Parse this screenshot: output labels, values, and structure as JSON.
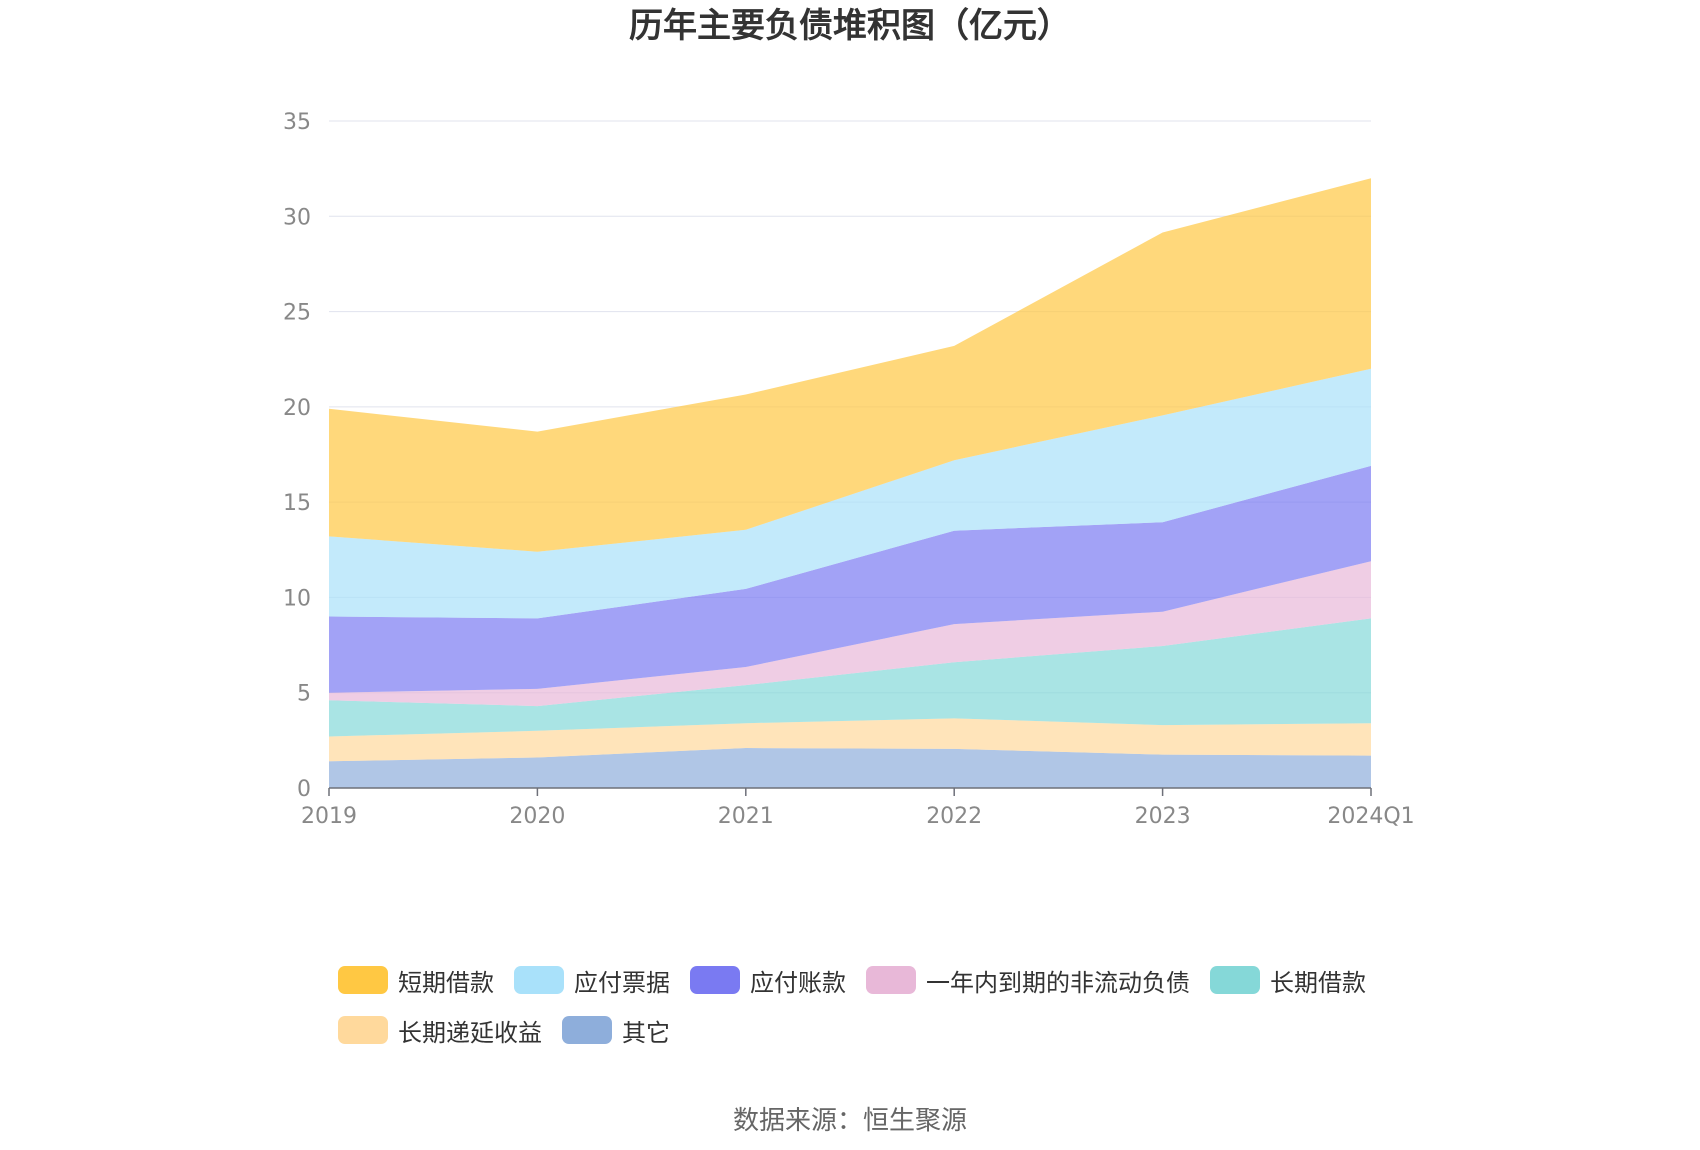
{
  "source_note": "数据来源：恒生聚源",
  "chart_data": {
    "type": "area",
    "stacked": true,
    "title": "历年主要负债堆积图（亿元）",
    "x": [
      "2019",
      "2020",
      "2021",
      "2022",
      "2023",
      "2024Q1"
    ],
    "ylim": [
      0,
      35
    ],
    "yticks": [
      0,
      5,
      10,
      15,
      20,
      25,
      30,
      35
    ],
    "grid": true,
    "legend_position": "bottom",
    "series": [
      {
        "name": "其它",
        "color": "#8eaedb",
        "values": [
          1.4,
          1.6,
          2.1,
          2.05,
          1.75,
          1.7
        ]
      },
      {
        "name": "长期递延收益",
        "color": "#ffd99c",
        "values": [
          1.3,
          1.4,
          1.3,
          1.6,
          1.55,
          1.7
        ]
      },
      {
        "name": "长期借款",
        "color": "#85d8d8",
        "values": [
          1.9,
          1.3,
          2.0,
          2.95,
          4.15,
          5.5
        ]
      },
      {
        "name": "一年内到期的非流动负债",
        "color": "#e8b8d8",
        "values": [
          0.4,
          0.9,
          0.95,
          2.0,
          1.8,
          3.0
        ]
      },
      {
        "name": "应付账款",
        "color": "#7a7af2",
        "values": [
          4.0,
          3.7,
          4.1,
          4.9,
          4.7,
          5.0
        ]
      },
      {
        "name": "应付票据",
        "color": "#a9e1fa",
        "values": [
          4.2,
          3.5,
          3.1,
          3.7,
          5.6,
          5.1
        ]
      },
      {
        "name": "短期借款",
        "color": "#ffc843",
        "values": [
          6.7,
          6.3,
          7.1,
          6.0,
          9.6,
          10.0
        ]
      }
    ],
    "legend_order": [
      "短期借款",
      "应付票据",
      "应付账款",
      "一年内到期的非流动负债",
      "长期借款",
      "长期递延收益",
      "其它"
    ]
  }
}
